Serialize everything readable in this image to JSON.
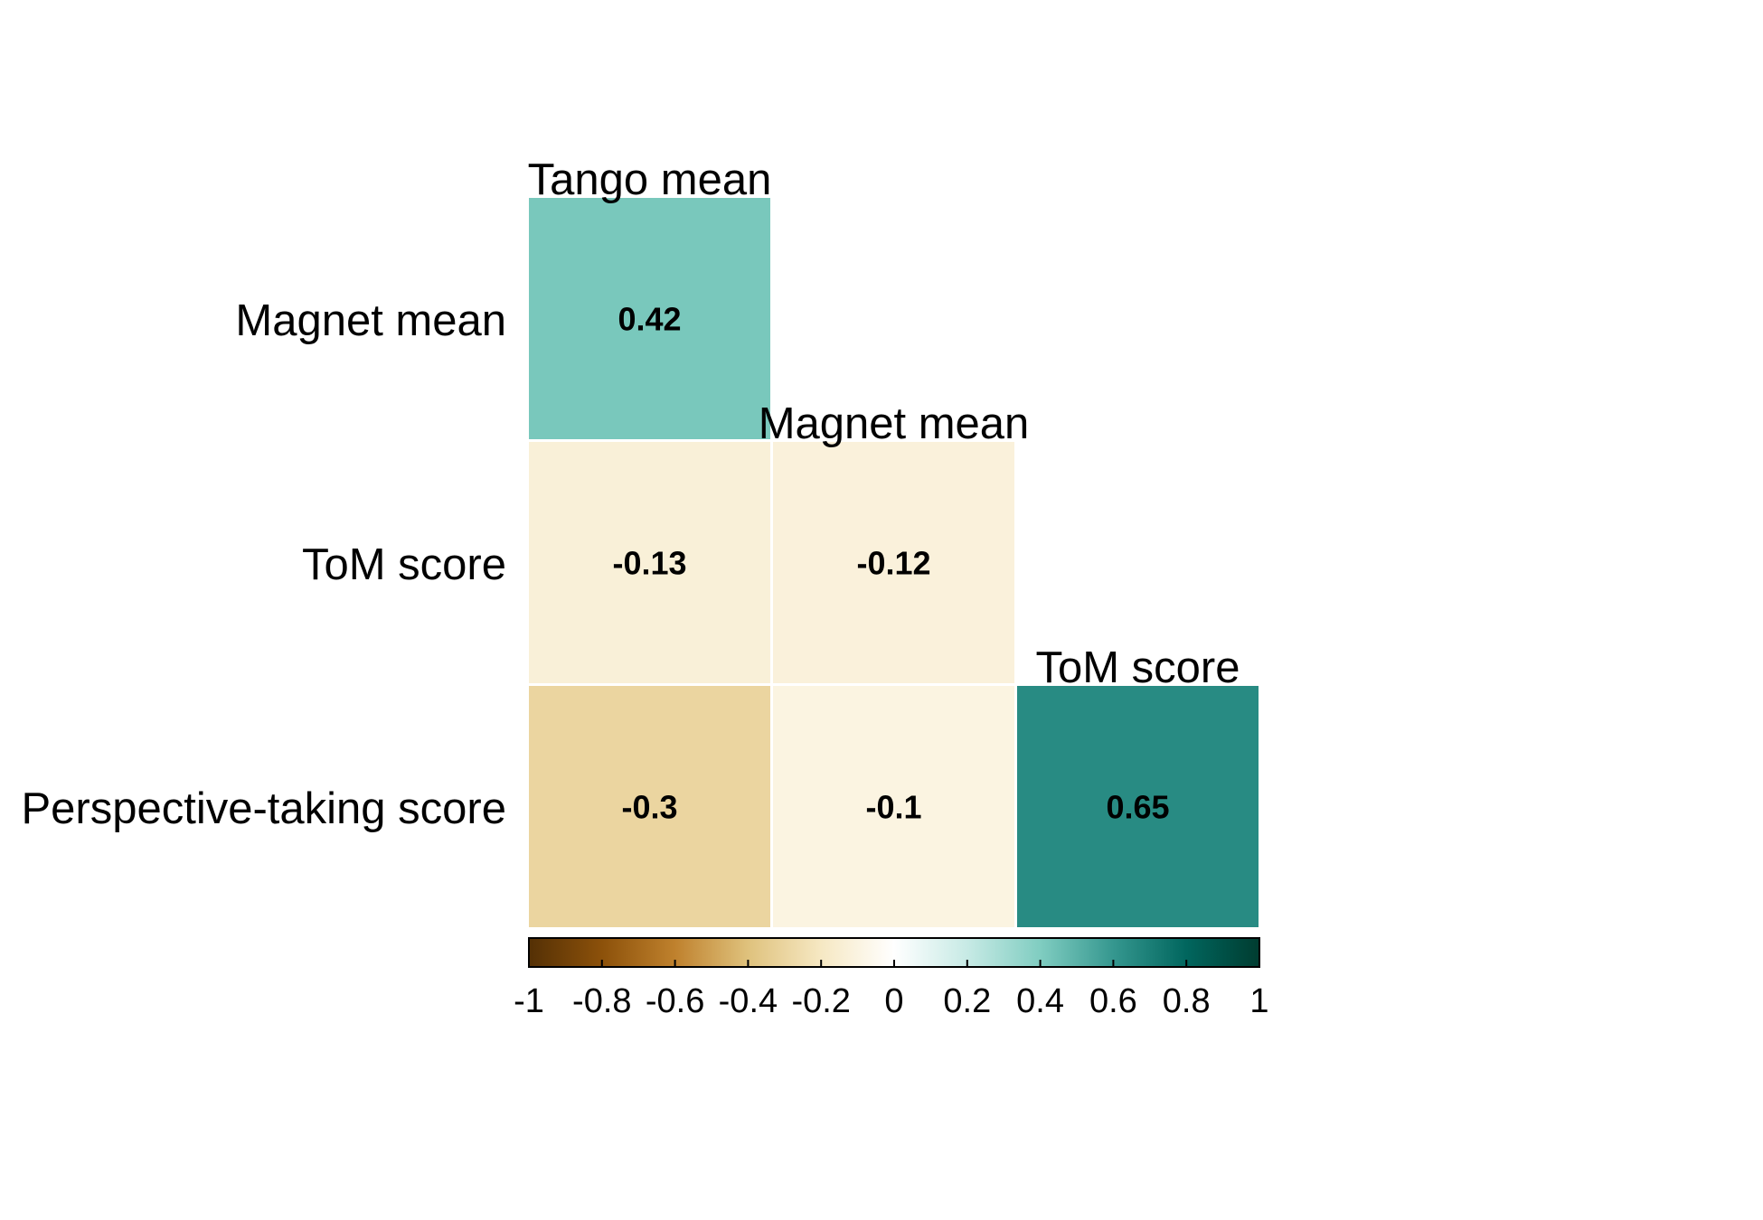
{
  "chart_data": {
    "type": "heatmap",
    "subtype": "correlation-lower-triangle",
    "variables": [
      "Tango mean",
      "Magnet mean",
      "ToM score",
      "Perspective-taking score"
    ],
    "row_labels": [
      "Magnet mean",
      "ToM score",
      "Perspective-taking score"
    ],
    "column_labels": [
      "Tango mean",
      "Magnet mean",
      "ToM score"
    ],
    "cells": [
      {
        "row": "Magnet mean",
        "col": "Tango mean",
        "value": 0.42,
        "label": "0.42"
      },
      {
        "row": "ToM score",
        "col": "Tango mean",
        "value": -0.13,
        "label": "-0.13"
      },
      {
        "row": "ToM score",
        "col": "Magnet mean",
        "value": -0.12,
        "label": "-0.12"
      },
      {
        "row": "Perspective-taking score",
        "col": "Tango mean",
        "value": -0.3,
        "label": "-0.3"
      },
      {
        "row": "Perspective-taking score",
        "col": "Magnet mean",
        "value": -0.1,
        "label": "-0.1"
      },
      {
        "row": "Perspective-taking score",
        "col": "ToM score",
        "value": 0.65,
        "label": "0.65"
      }
    ],
    "colorbar": {
      "range": [
        -1,
        1
      ],
      "ticks": [
        -1,
        -0.8,
        -0.6,
        -0.4,
        -0.2,
        0,
        0.2,
        0.4,
        0.6,
        0.8,
        1
      ],
      "tick_labels": [
        "-1",
        "-0.8",
        "-0.6",
        "-0.4",
        "-0.2",
        "0",
        "0.2",
        "0.4",
        "0.6",
        "0.8",
        "1"
      ],
      "palette": "BrBG",
      "colors": [
        "#543005",
        "#8c510a",
        "#bf812d",
        "#dfc27d",
        "#f6e8c3",
        "#ffffff",
        "#c7eae5",
        "#80cdc1",
        "#35978f",
        "#01665e",
        "#003c30"
      ],
      "placement": "bottom"
    },
    "grid": false,
    "legend": "none"
  }
}
